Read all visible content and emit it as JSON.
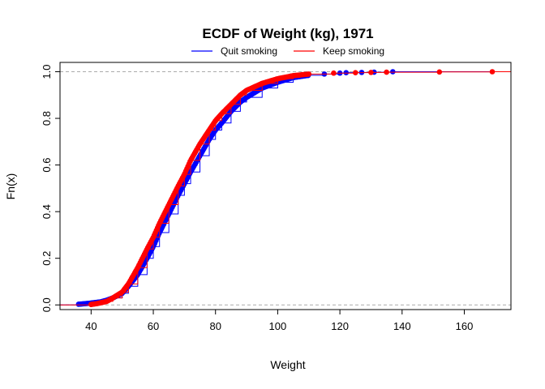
{
  "chart_data": {
    "type": "scatter",
    "title": "ECDF of Weight (kg), 1971",
    "xlabel": "Weight",
    "ylabel": "Fn(x)",
    "xlim": [
      30,
      175
    ],
    "ylim": [
      -0.02,
      1.04
    ],
    "xticks": [
      40,
      60,
      80,
      100,
      120,
      140,
      160
    ],
    "yticks": [
      0.0,
      0.2,
      0.4,
      0.6,
      0.8,
      1.0
    ],
    "xtick_labels": [
      "40",
      "60",
      "80",
      "100",
      "120",
      "140",
      "160"
    ],
    "ytick_labels": [
      "0.0",
      "0.2",
      "0.4",
      "0.6",
      "0.8",
      "1.0"
    ],
    "reference_lines": [
      0,
      1
    ],
    "grid": false,
    "legend_position": "top",
    "colors": {
      "quit": "#0000ff",
      "keep": "#ff0000",
      "ref": "#aaaaaa"
    },
    "legend": [
      "Quit smoking",
      "Keep smoking"
    ],
    "series": [
      {
        "name": "Quit smoking",
        "color": "#0000ff",
        "x": [
          36,
          40,
          43,
          45,
          47,
          50,
          52,
          55,
          58,
          60,
          62,
          65,
          68,
          70,
          72,
          75,
          78,
          80,
          82,
          85,
          88,
          90,
          95,
          100,
          105,
          110,
          115,
          120,
          122,
          127,
          131,
          137
        ],
        "y": [
          0.003,
          0.008,
          0.013,
          0.02,
          0.03,
          0.05,
          0.08,
          0.13,
          0.2,
          0.25,
          0.31,
          0.39,
          0.47,
          0.52,
          0.57,
          0.64,
          0.71,
          0.75,
          0.78,
          0.83,
          0.87,
          0.89,
          0.93,
          0.955,
          0.975,
          0.985,
          0.99,
          0.994,
          0.996,
          0.997,
          0.998,
          1.0
        ]
      },
      {
        "name": "Keep smoking",
        "color": "#ff0000",
        "x": [
          40,
          42,
          45,
          47,
          50,
          52,
          55,
          58,
          60,
          62,
          65,
          68,
          70,
          72,
          75,
          78,
          80,
          82,
          85,
          88,
          90,
          95,
          100,
          105,
          110,
          118,
          125,
          130,
          135,
          152,
          169
        ],
        "y": [
          0.002,
          0.006,
          0.015,
          0.03,
          0.055,
          0.09,
          0.16,
          0.24,
          0.29,
          0.35,
          0.43,
          0.51,
          0.56,
          0.62,
          0.69,
          0.75,
          0.79,
          0.82,
          0.86,
          0.9,
          0.92,
          0.95,
          0.97,
          0.983,
          0.99,
          0.994,
          0.996,
          0.997,
          0.998,
          0.999,
          1.0
        ]
      }
    ]
  }
}
